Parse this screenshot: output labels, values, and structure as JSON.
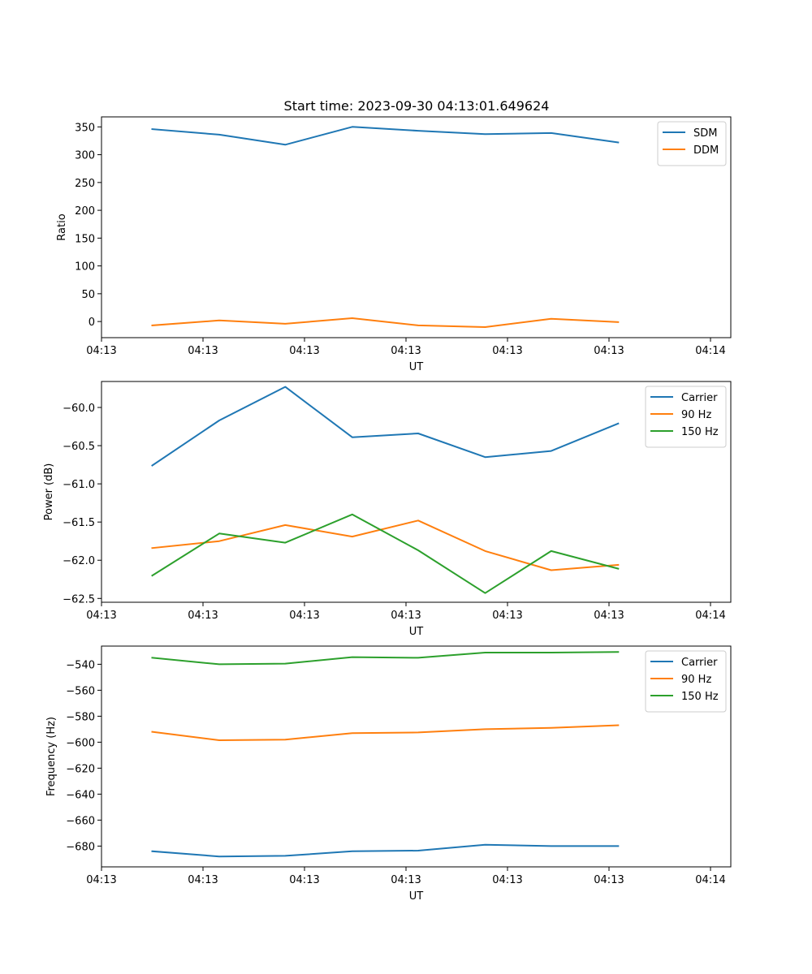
{
  "figure_title": "Start time: 2023-09-30 04:13:01.649624",
  "chart_data": [
    {
      "type": "line",
      "ylabel": "Ratio",
      "xlabel": "UT",
      "xlim": [
        0,
        6.2
      ],
      "ylim": [
        -29,
        368
      ],
      "x_ticks": [
        0,
        1,
        2,
        3,
        4,
        5,
        6
      ],
      "x_tick_labels": [
        "04:13",
        "04:13",
        "04:13",
        "04:13",
        "04:13",
        "04:13",
        "04:14"
      ],
      "y_ticks": [
        0,
        50,
        100,
        150,
        200,
        250,
        300,
        350
      ],
      "y_tick_labels": [
        "0",
        "50",
        "100",
        "150",
        "200",
        "250",
        "300",
        "350"
      ],
      "legend_position": "top-right",
      "x": [
        0.5,
        1.16,
        1.81,
        2.47,
        3.12,
        3.78,
        4.43,
        5.09
      ],
      "series": [
        {
          "name": "SDM",
          "color": "#1f77b4",
          "values": [
            346,
            336,
            318,
            350,
            343,
            337,
            339,
            322
          ]
        },
        {
          "name": "DDM",
          "color": "#ff7f0e",
          "values": [
            -7,
            2,
            -4,
            6,
            -7,
            -10,
            5,
            -1
          ]
        }
      ]
    },
    {
      "type": "line",
      "ylabel": "Power (dB)",
      "xlabel": "UT",
      "xlim": [
        0,
        6.2
      ],
      "ylim": [
        -62.55,
        -59.66
      ],
      "x_ticks": [
        0,
        1,
        2,
        3,
        4,
        5,
        6
      ],
      "x_tick_labels": [
        "04:13",
        "04:13",
        "04:13",
        "04:13",
        "04:13",
        "04:13",
        "04:14"
      ],
      "y_ticks": [
        -62.5,
        -62.0,
        -61.5,
        -61.0,
        -60.5,
        -60.0
      ],
      "y_tick_labels": [
        "−62.5",
        "−62.0",
        "−61.5",
        "−61.0",
        "−60.5",
        "−60.0"
      ],
      "legend_position": "top-right",
      "x": [
        0.5,
        1.16,
        1.81,
        2.47,
        3.12,
        3.78,
        4.43,
        5.09
      ],
      "series": [
        {
          "name": "Carrier",
          "color": "#1f77b4",
          "values": [
            -60.76,
            -60.17,
            -59.73,
            -60.39,
            -60.34,
            -60.65,
            -60.57,
            -60.21
          ]
        },
        {
          "name": "90 Hz",
          "color": "#ff7f0e",
          "values": [
            -61.84,
            -61.75,
            -61.54,
            -61.69,
            -61.48,
            -61.88,
            -62.13,
            -62.06
          ]
        },
        {
          "name": "150 Hz",
          "color": "#2ca02c",
          "values": [
            -62.2,
            -61.65,
            -61.77,
            -61.4,
            -61.87,
            -62.43,
            -61.88,
            -62.11
          ]
        }
      ]
    },
    {
      "type": "line",
      "ylabel": "Frequency (Hz)",
      "xlabel": "UT",
      "xlim": [
        0,
        6.2
      ],
      "ylim": [
        -696,
        -526
      ],
      "x_ticks": [
        0,
        1,
        2,
        3,
        4,
        5,
        6
      ],
      "x_tick_labels": [
        "04:13",
        "04:13",
        "04:13",
        "04:13",
        "04:13",
        "04:13",
        "04:14"
      ],
      "y_ticks": [
        -680,
        -660,
        -640,
        -620,
        -600,
        -580,
        -560,
        -540
      ],
      "y_tick_labels": [
        "−680",
        "−660",
        "−640",
        "−620",
        "−600",
        "−580",
        "−560",
        "−540"
      ],
      "legend_position": "top-right",
      "x": [
        0.5,
        1.16,
        1.81,
        2.47,
        3.12,
        3.78,
        4.43,
        5.09
      ],
      "series": [
        {
          "name": "Carrier",
          "color": "#1f77b4",
          "values": [
            -684,
            -688,
            -687.5,
            -684,
            -683.5,
            -679,
            -680,
            -680
          ]
        },
        {
          "name": "90 Hz",
          "color": "#ff7f0e",
          "values": [
            -592,
            -598.5,
            -598,
            -593,
            -592.5,
            -590,
            -589,
            -587
          ]
        },
        {
          "name": "150 Hz",
          "color": "#2ca02c",
          "values": [
            -535,
            -540,
            -539.5,
            -534.5,
            -535,
            -531,
            -531,
            -530.5
          ]
        }
      ]
    }
  ]
}
